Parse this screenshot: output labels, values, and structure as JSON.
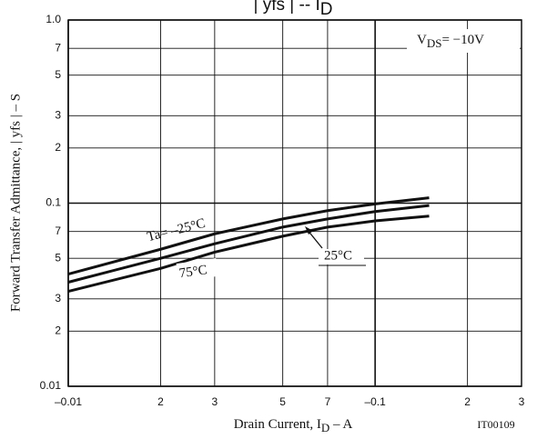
{
  "chart_data": {
    "type": "line",
    "title": {
      "text": "| yfs |  --  I",
      "sub": "D"
    },
    "xlabel": {
      "text": "Drain Current, I",
      "sub": "D",
      "suffix": "  –  A"
    },
    "ylabel": "Forward Transfer Admittance, | yfs |  –  S",
    "annotations": {
      "condition": {
        "text": "V",
        "sub": "DS",
        "suffix": "= −10V"
      },
      "code": "IT00109"
    },
    "x": [
      -0.01,
      -0.02,
      -0.03,
      -0.05,
      -0.07,
      -0.1,
      -0.15
    ],
    "series": [
      {
        "name": "Ta= –25°C",
        "color": "#111111",
        "values": [
          0.041,
          0.056,
          0.068,
          0.082,
          0.091,
          0.099,
          0.107
        ]
      },
      {
        "name": "25°C",
        "color": "#111111",
        "values": [
          0.037,
          0.05,
          0.06,
          0.074,
          0.082,
          0.09,
          0.097
        ]
      },
      {
        "name": "75°C",
        "color": "#111111",
        "values": [
          0.033,
          0.044,
          0.054,
          0.066,
          0.074,
          0.08,
          0.085
        ]
      }
    ],
    "xscale": "log",
    "yscale": "log",
    "grid": true,
    "xlim": [
      -0.01,
      -0.3
    ],
    "xticks": [
      {
        "value": -0.01,
        "label": "–0.01"
      },
      {
        "value": -0.02,
        "label": "2"
      },
      {
        "value": -0.03,
        "label": "3"
      },
      {
        "value": -0.05,
        "label": "5"
      },
      {
        "value": -0.07,
        "label": "7"
      },
      {
        "value": -0.1,
        "label": "–0.1"
      },
      {
        "value": -0.2,
        "label": "2"
      },
      {
        "value": -0.3,
        "label": "3"
      }
    ],
    "ylim": [
      0.01,
      1.0
    ],
    "yticks": [
      0.01,
      {
        "value": 0.02,
        "label": "2"
      },
      {
        "value": 0.03,
        "label": "3"
      },
      {
        "value": 0.05,
        "label": "5"
      },
      {
        "value": 0.07,
        "label": "7"
      },
      0.1,
      {
        "value": 0.2,
        "label": "2"
      },
      {
        "value": 0.3,
        "label": "3"
      },
      {
        "value": 0.5,
        "label": "5"
      },
      {
        "value": 0.7,
        "label": "7"
      },
      {
        "value": 1.0,
        "label": "1.0"
      }
    ]
  }
}
